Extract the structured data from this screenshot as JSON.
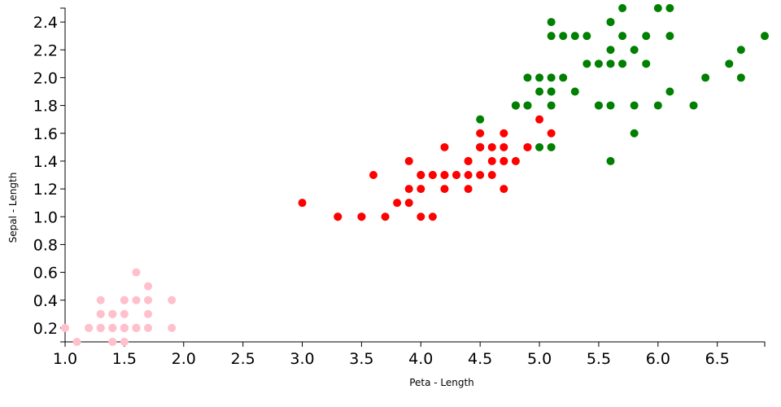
{
  "chart_data": {
    "type": "scatter",
    "x_label": "Peta - Length",
    "y_label": "Sepal - Length",
    "xlim": [
      1,
      6.9
    ],
    "ylim": [
      0.1,
      2.5
    ],
    "xticks": [
      {
        "value": 1,
        "label": "1.0"
      },
      1.5,
      {
        "value": 2,
        "label": "2.0"
      },
      2.5,
      {
        "value": 3,
        "label": "3.0"
      },
      3.5,
      {
        "value": 4,
        "label": "4.0"
      },
      4.5,
      {
        "value": 5,
        "label": "5.0"
      },
      5.5,
      {
        "value": 6,
        "label": "6.0"
      },
      6.5
    ],
    "yticks": [
      0.2,
      0.4,
      0.6,
      0.8,
      {
        "value": 1,
        "label": "1.0"
      },
      1.2,
      1.4,
      1.6,
      1.8,
      {
        "value": 2,
        "label": "2.0"
      },
      2.2,
      2.4
    ],
    "grid": false,
    "series": [
      {
        "color": "pink",
        "x": [
          1.4,
          1.4,
          1.3,
          1.5,
          1.4,
          1.7,
          1.4,
          1.5,
          1.4,
          1.5,
          1.5,
          1.6,
          1.4,
          1.1,
          1.2,
          1.5,
          1.3,
          1.4,
          1.7,
          1.5,
          1.7,
          1.5,
          1.0,
          1.7,
          1.9,
          1.6,
          1.6,
          1.5,
          1.4,
          1.6,
          1.6,
          1.5,
          1.5,
          1.4,
          1.5,
          1.2,
          1.3,
          1.4,
          1.3,
          1.5,
          1.3,
          1.3,
          1.3,
          1.6,
          1.9,
          1.4,
          1.6,
          1.4,
          1.5,
          1.4
        ],
        "values": [
          0.2,
          0.2,
          0.2,
          0.2,
          0.2,
          0.4,
          0.3,
          0.2,
          0.2,
          0.1,
          0.2,
          0.2,
          0.1,
          0.1,
          0.2,
          0.4,
          0.4,
          0.3,
          0.3,
          0.3,
          0.2,
          0.4,
          0.2,
          0.5,
          0.2,
          0.2,
          0.4,
          0.2,
          0.2,
          0.2,
          0.2,
          0.4,
          0.1,
          0.2,
          0.2,
          0.2,
          0.2,
          0.1,
          0.2,
          0.2,
          0.3,
          0.3,
          0.2,
          0.6,
          0.4,
          0.3,
          0.2,
          0.2,
          0.2,
          0.2
        ]
      },
      {
        "color": "red",
        "x": [
          4.7,
          4.5,
          4.9,
          4.0,
          4.6,
          4.5,
          4.7,
          3.3,
          4.6,
          3.9,
          3.5,
          4.2,
          4.0,
          4.7,
          3.6,
          4.4,
          4.5,
          4.1,
          4.5,
          3.9,
          4.8,
          4.0,
          4.9,
          4.7,
          4.3,
          4.4,
          4.8,
          5.0,
          4.5,
          3.5,
          3.8,
          3.7,
          3.9,
          5.1,
          4.5,
          4.5,
          4.7,
          4.4,
          4.1,
          4.0,
          4.4,
          4.6,
          4.0,
          3.3,
          4.2,
          4.2,
          4.2,
          4.3,
          3.0,
          4.1
        ],
        "values": [
          1.4,
          1.5,
          1.5,
          1.3,
          1.5,
          1.3,
          1.6,
          1.0,
          1.3,
          1.4,
          1.0,
          1.5,
          1.0,
          1.4,
          1.3,
          1.4,
          1.5,
          1.0,
          1.5,
          1.1,
          1.8,
          1.3,
          1.5,
          1.2,
          1.3,
          1.4,
          1.4,
          1.7,
          1.5,
          1.0,
          1.1,
          1.0,
          1.2,
          1.6,
          1.5,
          1.6,
          1.5,
          1.3,
          1.3,
          1.3,
          1.2,
          1.4,
          1.2,
          1.0,
          1.3,
          1.2,
          1.3,
          1.3,
          1.1,
          1.3
        ]
      },
      {
        "color": "green",
        "x": [
          6.0,
          5.1,
          5.9,
          5.6,
          5.8,
          6.6,
          4.5,
          6.3,
          5.8,
          6.1,
          5.1,
          5.3,
          5.5,
          5.0,
          5.1,
          5.3,
          5.5,
          6.7,
          6.9,
          5.0,
          5.7,
          4.9,
          6.7,
          4.9,
          5.7,
          6.0,
          4.8,
          4.9,
          5.6,
          5.8,
          6.1,
          6.4,
          5.6,
          5.1,
          5.6,
          6.1,
          5.6,
          5.5,
          4.8,
          5.4,
          5.6,
          5.1,
          5.1,
          5.9,
          5.7,
          5.2,
          5.0,
          5.2,
          5.4,
          5.1
        ],
        "values": [
          2.5,
          1.9,
          2.1,
          1.8,
          2.2,
          2.1,
          1.7,
          1.8,
          1.8,
          2.5,
          2.0,
          1.9,
          2.1,
          2.0,
          2.4,
          2.3,
          1.8,
          2.2,
          2.3,
          1.5,
          2.3,
          2.0,
          2.0,
          1.8,
          2.1,
          1.8,
          1.8,
          1.8,
          2.1,
          1.6,
          1.9,
          2.0,
          2.2,
          1.5,
          1.4,
          2.3,
          2.4,
          1.8,
          1.8,
          2.1,
          2.4,
          2.3,
          1.9,
          2.3,
          2.5,
          2.3,
          1.9,
          2.0,
          2.3,
          1.8
        ]
      }
    ]
  }
}
